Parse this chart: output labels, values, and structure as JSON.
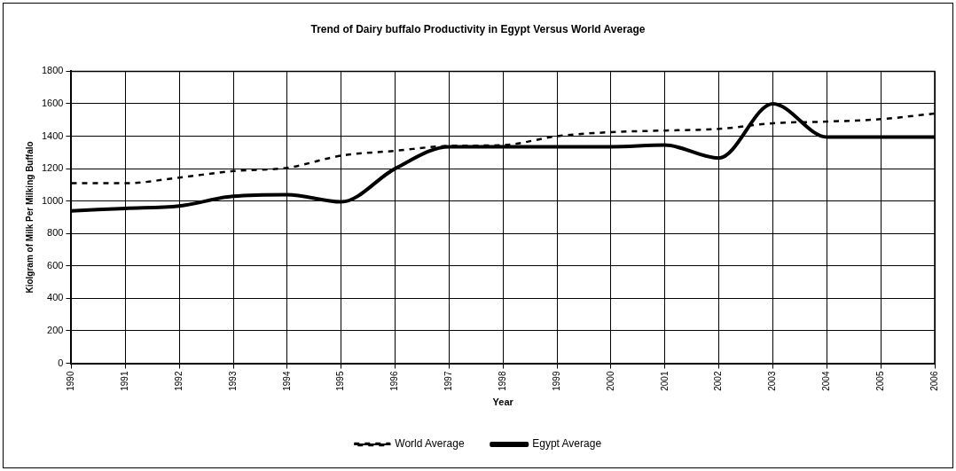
{
  "chart_data": {
    "type": "line",
    "title": "Trend of Dairy buffalo Productivity in Egypt Versus World Average",
    "xlabel": "Year",
    "ylabel": "Kiolgram of Milk Per Milking Buffalo",
    "categories": [
      "1990",
      "1991",
      "1992",
      "1993",
      "1994",
      "1995",
      "1996",
      "1997",
      "1998",
      "1999",
      "2000",
      "2001",
      "2002",
      "2003",
      "2004",
      "2005",
      "2006"
    ],
    "series": [
      {
        "name": "World Average",
        "color": "#000000",
        "line_style": "dashed",
        "values": [
          1110,
          1110,
          1145,
          1185,
          1205,
          1280,
          1310,
          1340,
          1345,
          1400,
          1425,
          1435,
          1445,
          1480,
          1490,
          1505,
          1540
        ]
      },
      {
        "name": "Egypt Average",
        "color": "#000000",
        "line_style": "solid",
        "values": [
          940,
          955,
          970,
          1030,
          1040,
          995,
          1200,
          1335,
          1335,
          1335,
          1335,
          1345,
          1265,
          1600,
          1395,
          1395,
          1395
        ]
      }
    ],
    "ylim": [
      0,
      1800
    ],
    "yticks": [
      0,
      200,
      400,
      600,
      800,
      1000,
      1200,
      1400,
      1600,
      1800
    ],
    "grid": true,
    "legend": "bottom",
    "marker": "none"
  }
}
